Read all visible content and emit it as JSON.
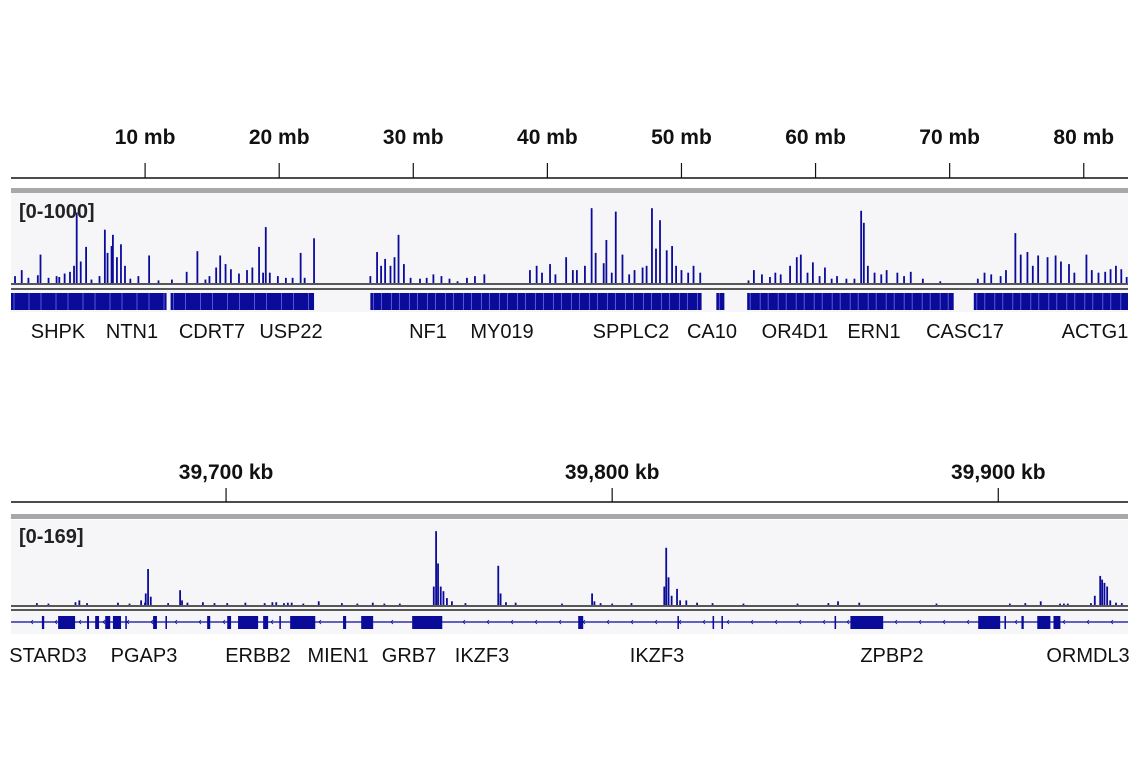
{
  "colors": {
    "signal": "#0b0b9a",
    "track_bg": "#f6f6f8",
    "divider": "#a8a8a8",
    "axis": "#111111"
  },
  "chart_data": [
    {
      "type": "bar",
      "unit": "mb",
      "xlim": [
        0,
        83.3
      ],
      "ticks": [
        {
          "value": 10,
          "label": "10 mb"
        },
        {
          "value": 20,
          "label": "20 mb"
        },
        {
          "value": 30,
          "label": "30 mb"
        },
        {
          "value": 40,
          "label": "40 mb"
        },
        {
          "value": 50,
          "label": "50 mb"
        },
        {
          "value": 60,
          "label": "60 mb"
        },
        {
          "value": 70,
          "label": "70 mb"
        },
        {
          "value": 80,
          "label": "80 mb"
        }
      ],
      "data_range_label": "[0-1000]",
      "ylim": [
        0,
        1000
      ],
      "signal": [
        [
          0.3,
          80
        ],
        [
          0.8,
          150
        ],
        [
          1.3,
          60
        ],
        [
          2.0,
          90
        ],
        [
          2.2,
          330
        ],
        [
          2.8,
          60
        ],
        [
          3.4,
          80
        ],
        [
          3.6,
          70
        ],
        [
          4.0,
          110
        ],
        [
          4.4,
          130
        ],
        [
          4.7,
          200
        ],
        [
          4.9,
          820
        ],
        [
          5.2,
          250
        ],
        [
          5.6,
          420
        ],
        [
          6.0,
          40
        ],
        [
          6.6,
          80
        ],
        [
          7.0,
          620
        ],
        [
          7.2,
          350
        ],
        [
          7.5,
          430
        ],
        [
          7.6,
          560
        ],
        [
          7.9,
          300
        ],
        [
          8.2,
          450
        ],
        [
          8.5,
          200
        ],
        [
          8.9,
          50
        ],
        [
          9.5,
          80
        ],
        [
          10.3,
          320
        ],
        [
          11.0,
          30
        ],
        [
          12.0,
          40
        ],
        [
          13.1,
          130
        ],
        [
          13.9,
          370
        ],
        [
          14.5,
          40
        ],
        [
          14.8,
          80
        ],
        [
          15.3,
          180
        ],
        [
          15.6,
          320
        ],
        [
          16.0,
          220
        ],
        [
          16.4,
          160
        ],
        [
          17.0,
          110
        ],
        [
          17.6,
          150
        ],
        [
          18.0,
          180
        ],
        [
          18.5,
          420
        ],
        [
          18.8,
          120
        ],
        [
          19.0,
          650
        ],
        [
          19.3,
          120
        ],
        [
          19.9,
          80
        ],
        [
          20.5,
          60
        ],
        [
          21.0,
          60
        ],
        [
          21.6,
          350
        ],
        [
          21.9,
          60
        ],
        [
          22.6,
          520
        ],
        [
          26.8,
          80
        ],
        [
          27.3,
          360
        ],
        [
          27.6,
          200
        ],
        [
          27.9,
          280
        ],
        [
          28.3,
          200
        ],
        [
          28.6,
          300
        ],
        [
          28.9,
          560
        ],
        [
          29.3,
          220
        ],
        [
          29.8,
          60
        ],
        [
          30.5,
          50
        ],
        [
          31.0,
          60
        ],
        [
          31.5,
          100
        ],
        [
          32.1,
          80
        ],
        [
          32.7,
          50
        ],
        [
          33.3,
          20
        ],
        [
          34.0,
          60
        ],
        [
          34.6,
          80
        ],
        [
          35.3,
          100
        ],
        [
          38.7,
          150
        ],
        [
          39.2,
          200
        ],
        [
          39.6,
          120
        ],
        [
          40.2,
          220
        ],
        [
          40.6,
          100
        ],
        [
          41.4,
          300
        ],
        [
          41.9,
          150
        ],
        [
          42.2,
          150
        ],
        [
          42.8,
          200
        ],
        [
          43.3,
          870
        ],
        [
          43.6,
          350
        ],
        [
          44.2,
          230
        ],
        [
          44.4,
          500
        ],
        [
          44.8,
          120
        ],
        [
          45.1,
          830
        ],
        [
          45.6,
          330
        ],
        [
          46.1,
          100
        ],
        [
          46.5,
          150
        ],
        [
          47.1,
          180
        ],
        [
          47.4,
          200
        ],
        [
          47.8,
          870
        ],
        [
          48.1,
          400
        ],
        [
          48.4,
          730
        ],
        [
          48.9,
          380
        ],
        [
          49.3,
          430
        ],
        [
          49.6,
          200
        ],
        [
          50.0,
          150
        ],
        [
          50.5,
          120
        ],
        [
          50.9,
          200
        ],
        [
          51.4,
          120
        ],
        [
          55.0,
          30
        ],
        [
          55.4,
          150
        ],
        [
          56.0,
          100
        ],
        [
          56.6,
          70
        ],
        [
          57.0,
          120
        ],
        [
          57.4,
          100
        ],
        [
          58.1,
          200
        ],
        [
          58.6,
          300
        ],
        [
          58.9,
          330
        ],
        [
          59.4,
          120
        ],
        [
          59.8,
          240
        ],
        [
          60.3,
          80
        ],
        [
          60.7,
          180
        ],
        [
          61.2,
          50
        ],
        [
          61.6,
          80
        ],
        [
          62.3,
          50
        ],
        [
          62.9,
          50
        ],
        [
          63.4,
          840
        ],
        [
          63.6,
          700
        ],
        [
          63.9,
          200
        ],
        [
          64.4,
          120
        ],
        [
          64.9,
          100
        ],
        [
          65.3,
          150
        ],
        [
          66.1,
          120
        ],
        [
          66.6,
          80
        ],
        [
          67.1,
          130
        ],
        [
          68.0,
          50
        ],
        [
          69.3,
          20
        ],
        [
          72.1,
          50
        ],
        [
          72.6,
          120
        ],
        [
          73.1,
          100
        ],
        [
          73.8,
          80
        ],
        [
          74.2,
          150
        ],
        [
          74.9,
          580
        ],
        [
          75.3,
          330
        ],
        [
          75.8,
          360
        ],
        [
          76.2,
          200
        ],
        [
          76.6,
          320
        ],
        [
          77.3,
          300
        ],
        [
          77.9,
          320
        ],
        [
          78.3,
          250
        ],
        [
          78.9,
          220
        ],
        [
          79.3,
          120
        ],
        [
          80.2,
          330
        ],
        [
          80.6,
          150
        ],
        [
          81.1,
          120
        ],
        [
          81.6,
          130
        ],
        [
          82.0,
          160
        ],
        [
          82.4,
          200
        ],
        [
          82.8,
          160
        ],
        [
          83.2,
          70
        ]
      ],
      "gene_regions": [
        [
          0,
          11.6
        ],
        [
          11.9,
          22.6
        ],
        [
          26.8,
          51.5
        ],
        [
          52.6,
          53.2
        ],
        [
          54.9,
          70.3
        ],
        [
          71.8,
          83.3
        ]
      ],
      "genes": [
        "SHPK",
        "NTN1",
        "CDRT7",
        "USP22",
        "NF1",
        "MY019",
        "SPPLC2",
        "CA10",
        "OR4D1",
        "ERN1",
        "CASC17",
        "ACTG1"
      ]
    },
    {
      "type": "bar",
      "unit": "kb",
      "xlim": [
        39644.3,
        39933.6
      ],
      "ticks": [
        {
          "value": 39700,
          "label": "39,700 kb"
        },
        {
          "value": 39800,
          "label": "39,800 kb"
        },
        {
          "value": 39900,
          "label": "39,900 kb"
        }
      ],
      "data_range_label": "[0-169]",
      "ylim": [
        0,
        169
      ],
      "signal": [
        [
          39651,
          4
        ],
        [
          39654,
          3
        ],
        [
          39662,
          10
        ],
        [
          39664,
          4
        ],
        [
          39661,
          6
        ],
        [
          39672,
          5
        ],
        [
          39675,
          3
        ],
        [
          39679,
          5
        ],
        [
          39685,
          4
        ],
        [
          39690,
          5
        ],
        [
          39694,
          6
        ],
        [
          39697,
          4
        ],
        [
          39705,
          5
        ],
        [
          39710,
          4
        ],
        [
          39713,
          6
        ],
        [
          39715,
          4
        ],
        [
          39716,
          5
        ],
        [
          39717,
          5
        ],
        [
          39678,
          10
        ],
        [
          39679.8,
          78
        ],
        [
          39679.2,
          25
        ],
        [
          39680.5,
          18
        ],
        [
          39688.1,
          32
        ],
        [
          39688.6,
          10
        ],
        [
          39700.3,
          4
        ],
        [
          39712,
          6
        ],
        [
          39720,
          3
        ],
        [
          39724,
          8
        ],
        [
          39730,
          4
        ],
        [
          39734,
          3
        ],
        [
          39738,
          5
        ],
        [
          39741,
          3
        ],
        [
          39745,
          3
        ],
        [
          39753.8,
          40
        ],
        [
          39754.4,
          160
        ],
        [
          39754.9,
          90
        ],
        [
          39755.6,
          40
        ],
        [
          39756.3,
          30
        ],
        [
          39757.2,
          15
        ],
        [
          39758.5,
          8
        ],
        [
          39762,
          4
        ],
        [
          39770.5,
          85
        ],
        [
          39771.1,
          25
        ],
        [
          39772.5,
          6
        ],
        [
          39775,
          5
        ],
        [
          39787,
          3
        ],
        [
          39794.8,
          25
        ],
        [
          39795.4,
          8
        ],
        [
          39797,
          4
        ],
        [
          39800,
          3
        ],
        [
          39805,
          4
        ],
        [
          39813.5,
          40
        ],
        [
          39814,
          124
        ],
        [
          39814.6,
          60
        ],
        [
          39815.4,
          20
        ],
        [
          39816.8,
          35
        ],
        [
          39817.6,
          10
        ],
        [
          39819.2,
          10
        ],
        [
          39822,
          5
        ],
        [
          39826,
          4
        ],
        [
          39834,
          3
        ],
        [
          39848,
          3
        ],
        [
          39856,
          4
        ],
        [
          39858.5,
          8
        ],
        [
          39864,
          5
        ],
        [
          39884,
          3
        ],
        [
          39903,
          3
        ],
        [
          39907,
          4
        ],
        [
          39911,
          8
        ],
        [
          39916,
          3
        ],
        [
          39917,
          3
        ],
        [
          39918,
          3
        ],
        [
          39924,
          4
        ],
        [
          39925,
          20
        ],
        [
          39926.4,
          63
        ],
        [
          39926.9,
          55
        ],
        [
          39927.5,
          48
        ],
        [
          39928.2,
          40
        ],
        [
          39929,
          10
        ],
        [
          39930.5,
          5
        ],
        [
          39932,
          4
        ]
      ],
      "exons": [
        [
          39652.3,
          39652.9
        ],
        [
          39656.5,
          39660.9
        ],
        [
          39664.0,
          39664.5
        ],
        [
          39666.1,
          39667.1
        ],
        [
          39668.7,
          39670.0
        ],
        [
          39670.7,
          39672.8
        ],
        [
          39673.9,
          39674.3
        ],
        [
          39681.1,
          39682.1
        ],
        [
          39684.3,
          39684.7
        ],
        [
          39695.1,
          39695.9
        ],
        [
          39700.3,
          39701.3
        ],
        [
          39703.1,
          39708.3
        ],
        [
          39709.6,
          39710.9
        ],
        [
          39713.8,
          39714.2
        ],
        [
          39716.6,
          39723.1
        ],
        [
          39730.3,
          39731.1
        ],
        [
          39735.0,
          39738.1
        ],
        [
          39748.2,
          39756.0
        ],
        [
          39791.2,
          39792.5
        ],
        [
          39816.9,
          39817.3
        ],
        [
          39826.0,
          39826.4
        ],
        [
          39828.3,
          39828.7
        ],
        [
          39857.6,
          39858.0
        ],
        [
          39861.7,
          39870.2
        ],
        [
          39894.8,
          39900.5
        ],
        [
          39901.6,
          39902.0
        ],
        [
          39906.0,
          39906.6
        ],
        [
          39910.1,
          39913.5
        ],
        [
          39914.3,
          39916.1
        ]
      ],
      "genes": [
        "STARD3",
        "PGAP3",
        "ERBB2",
        "MIEN1",
        "GRB7",
        "IKZF3",
        "IKZF3",
        "ZPBP2",
        "ORMDL3"
      ]
    }
  ]
}
